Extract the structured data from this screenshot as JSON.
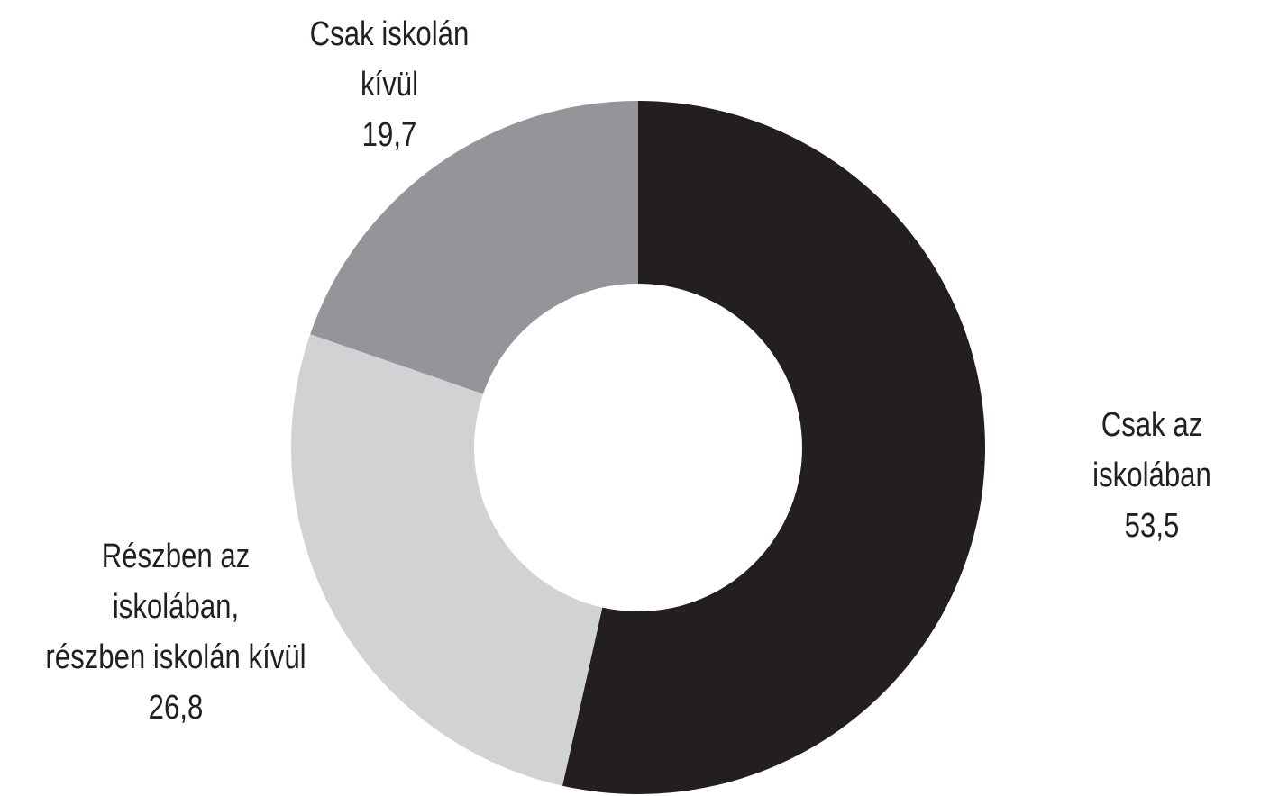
{
  "chart_data": {
    "type": "donut",
    "categories": [
      "Csak az iskolában",
      "Részben az iskolában,\nrészben iskolán kívül",
      "Csak iskolán kívül"
    ],
    "values": [
      53.5,
      26.8,
      19.7
    ],
    "value_labels": [
      "53,5",
      "26,8",
      "19,7"
    ],
    "colors": [
      "#231f20",
      "#d1d2d4",
      "#939598"
    ]
  }
}
